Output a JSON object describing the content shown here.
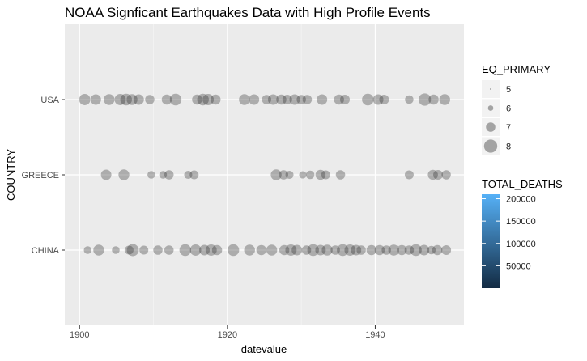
{
  "chart_data": {
    "type": "scatter",
    "title": "NOAA Signficant Earthquakes Data with High Profile Events",
    "xlabel": "datevalue",
    "ylabel": "COUNTRY",
    "xlim": [
      1898,
      1952
    ],
    "x_ticks": [
      "1900",
      "1920",
      "1940"
    ],
    "categories": [
      "CHINA",
      "GREECE",
      "USA"
    ],
    "grid": true,
    "legend_placement": "right",
    "size_legend": {
      "title": "EQ_PRIMARY",
      "labels": [
        "5",
        "6",
        "7",
        "8"
      ],
      "values": [
        5,
        6,
        7,
        8
      ]
    },
    "color_legend": {
      "title": "TOTAL_DEATHS",
      "labels": [
        "200000",
        "150000",
        "100000",
        "50000"
      ],
      "values": [
        200000,
        150000,
        100000,
        50000
      ],
      "range": [
        0,
        210000
      ],
      "low_color": "#132B43",
      "high_color": "#56B1F7"
    },
    "point_color": "#1a1a1a",
    "point_opacity": 0.3,
    "series": [
      {
        "category": "USA",
        "x": [
          1900.7,
          1902.2,
          1904.0,
          1905.5,
          1906.3,
          1907.1,
          1908.0,
          1909.5,
          1911.8,
          1913.0,
          1915.9,
          1916.7,
          1917.4,
          1918.4,
          1922.3,
          1923.6,
          1925.3,
          1926.2,
          1927.3,
          1928.1,
          1929.1,
          1930.0,
          1930.8,
          1932.8,
          1935.1,
          1935.9,
          1939.0,
          1940.4,
          1941.2,
          1944.6,
          1946.7,
          1947.9,
          1949.4
        ],
        "y": [
          7.5,
          7.3,
          7.4,
          7.5,
          7.6,
          7.4,
          7.3,
          7.0,
          7.2,
          7.6,
          7.2,
          7.6,
          7.5,
          7.2,
          7.4,
          7.3,
          7.0,
          7.3,
          7.2,
          7.1,
          7.3,
          7.0,
          7.0,
          7.3,
          7.2,
          7.1,
          7.6,
          7.3,
          7.1,
          6.8,
          7.8,
          7.2,
          7.4
        ]
      },
      {
        "category": "GREECE",
        "x": [
          1903.6,
          1906.0,
          1909.7,
          1911.3,
          1912.1,
          1914.7,
          1915.5,
          1926.6,
          1927.6,
          1928.4,
          1930.2,
          1931.2,
          1932.6,
          1933.3,
          1935.3,
          1944.6,
          1947.8,
          1948.5,
          1949.6
        ],
        "y": [
          7.3,
          7.4,
          6.6,
          6.6,
          7.0,
          6.7,
          6.9,
          7.4,
          7.0,
          6.7,
          6.5,
          6.8,
          7.2,
          6.9,
          7.0,
          6.9,
          7.2,
          7.1,
          7.0
        ]
      },
      {
        "category": "CHINA",
        "x": [
          1901.1,
          1902.6,
          1904.9,
          1906.7,
          1907.2,
          1908.7,
          1910.6,
          1912.1,
          1914.3,
          1915.7,
          1916.9,
          1917.8,
          1918.6,
          1920.8,
          1923.0,
          1924.6,
          1926.0,
          1927.7,
          1928.6,
          1929.4,
          1930.7,
          1931.6,
          1932.6,
          1933.5,
          1934.6,
          1935.6,
          1936.6,
          1937.4,
          1938.1,
          1939.5,
          1940.6,
          1941.5,
          1942.5,
          1943.6,
          1944.6,
          1945.5,
          1946.6,
          1947.6,
          1948.4,
          1949.6
        ],
        "y": [
          6.6,
          7.4,
          6.6,
          6.9,
          7.7,
          6.9,
          7.0,
          7.0,
          7.6,
          7.5,
          7.3,
          7.5,
          7.2,
          7.6,
          7.4,
          7.2,
          7.4,
          7.2,
          7.5,
          7.3,
          7.0,
          7.6,
          7.3,
          7.4,
          7.0,
          7.6,
          7.5,
          7.3,
          7.0,
          7.2,
          7.2,
          7.0,
          7.4,
          7.2,
          7.0,
          7.6,
          7.3,
          6.8,
          7.2,
          7.1
        ]
      }
    ]
  }
}
